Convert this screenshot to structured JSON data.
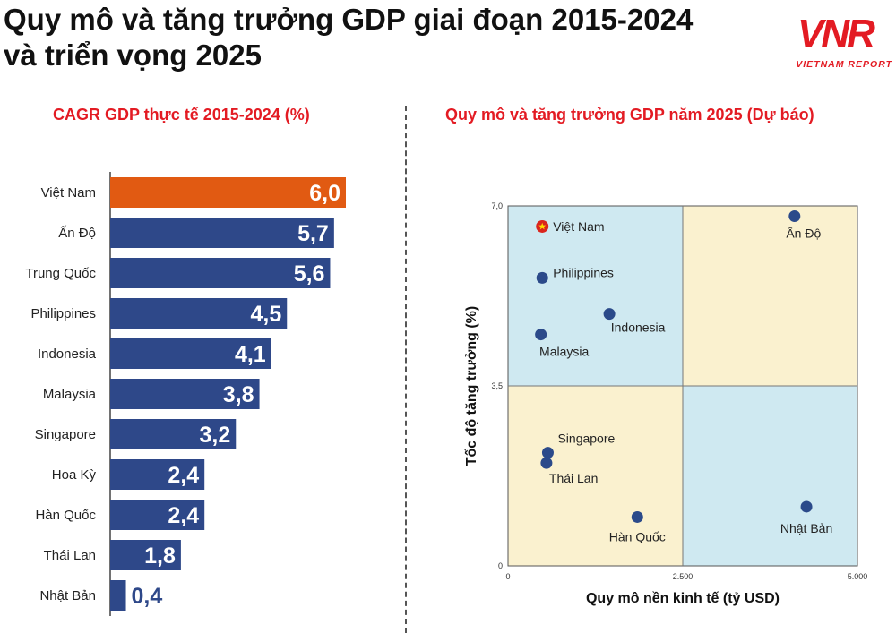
{
  "header": {
    "title_line1": "Quy mô và tăng trưởng GDP giai đoạn 2015-2024",
    "title_line2": "và triển vọng 2025",
    "logo_text": "VNR",
    "logo_subtitle": "VIETNAM REPORT"
  },
  "colors": {
    "title_red": "#e31b23",
    "bar_blue": "#2e4889",
    "bar_highlight": "#e15a12",
    "quadrant_blue": "#cfe9f1",
    "quadrant_yellow": "#faf1cf",
    "dot_blue": "#2b4a8a"
  },
  "chart_data": [
    {
      "type": "bar",
      "orientation": "horizontal",
      "title": "CAGR GDP thực tế 2015-2024 (%)",
      "categories": [
        "Việt Nam",
        "Ấn Độ",
        "Trung Quốc",
        "Philippines",
        "Indonesia",
        "Malaysia",
        "Singapore",
        "Hoa Kỳ",
        "Hàn Quốc",
        "Thái Lan",
        "Nhật Bản"
      ],
      "values": [
        6.0,
        5.7,
        5.6,
        4.5,
        4.1,
        3.8,
        3.2,
        2.4,
        2.4,
        1.8,
        0.4
      ],
      "value_labels": [
        "6,0",
        "5,7",
        "5,6",
        "4,5",
        "4,1",
        "3,8",
        "3,2",
        "2,4",
        "2,4",
        "1,8",
        "0,4"
      ],
      "highlight": "Việt Nam",
      "xlim": [
        0,
        6.0
      ]
    },
    {
      "type": "scatter",
      "title": "Quy mô và tăng trưởng GDP năm 2025 (Dự báo)",
      "xlabel": "Quy mô nền kinh tế (tỷ USD)",
      "ylabel": "Tốc độ tăng trưởng (%)",
      "xlim": [
        0,
        5000
      ],
      "ylim": [
        0,
        7.0
      ],
      "x_ticks": [
        0,
        2500,
        5000
      ],
      "x_tick_labels": [
        "0",
        "2.500",
        "5.000"
      ],
      "y_ticks": [
        0,
        3.5,
        7.0
      ],
      "y_tick_labels": [
        "0",
        "3,5",
        "7,0"
      ],
      "quadrant_split": {
        "x": 2500,
        "y": 3.5
      },
      "points": [
        {
          "label": "Việt Nam",
          "x": 490,
          "y": 6.6,
          "marker": "flag"
        },
        {
          "label": "Ấn Độ",
          "x": 4100,
          "y": 6.8
        },
        {
          "label": "Philippines",
          "x": 490,
          "y": 5.6
        },
        {
          "label": "Indonesia",
          "x": 1450,
          "y": 4.9
        },
        {
          "label": "Malaysia",
          "x": 470,
          "y": 4.5
        },
        {
          "label": "Singapore",
          "x": 570,
          "y": 2.2
        },
        {
          "label": "Thái Lan",
          "x": 550,
          "y": 2.0
        },
        {
          "label": "Hàn Quốc",
          "x": 1850,
          "y": 0.95
        },
        {
          "label": "Nhật Bản",
          "x": 4270,
          "y": 1.15
        }
      ]
    }
  ]
}
